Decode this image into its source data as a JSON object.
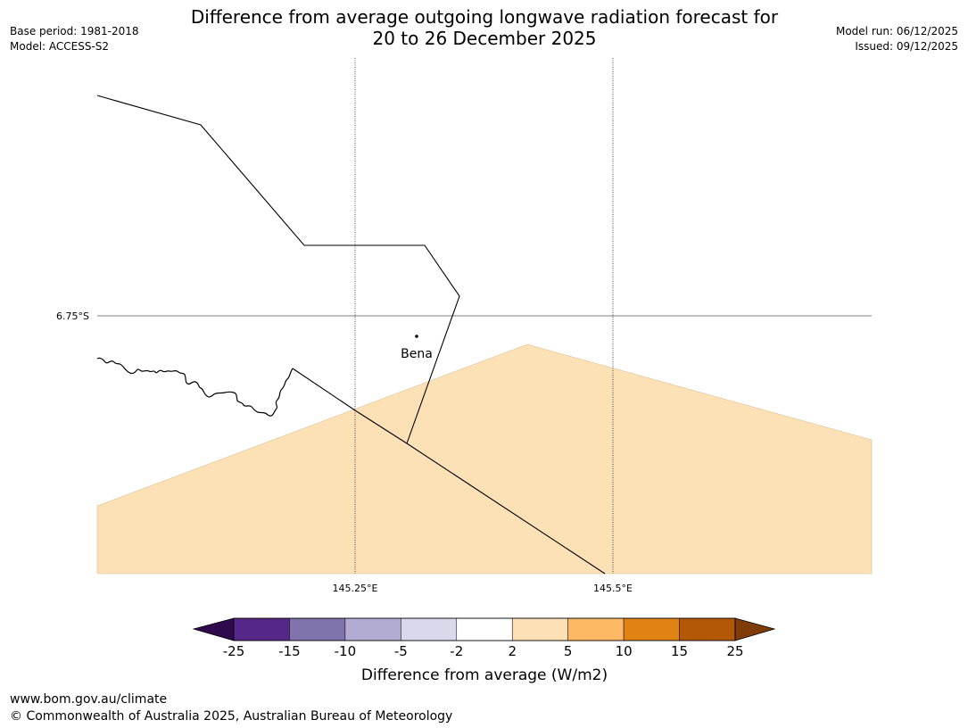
{
  "title": {
    "line1": "Difference from average outgoing longwave radiation forecast for",
    "line2": "20 to 26 December 2025"
  },
  "meta": {
    "base_period": "Base period: 1981-2018",
    "model": "Model: ACCESS-S2",
    "model_run": "Model run: 06/12/2025",
    "issued": "Issued: 09/12/2025"
  },
  "map": {
    "lat_label": "6.75°S",
    "lon_labels": [
      "145.25°E",
      "145.5°E"
    ],
    "place": "Bena",
    "fill_category": "2 to 5",
    "fill_color": "#fce0b6",
    "frame_color": "#000000"
  },
  "colorbar": {
    "title": "Difference from average (W/m2)",
    "ticks": [
      "-25",
      "-15",
      "-10",
      "-5",
      "-2",
      "2",
      "5",
      "10",
      "15",
      "25"
    ],
    "under_color": "#2f0a4c",
    "over_color": "#7f3b08",
    "colors": [
      "#542788",
      "#8073ac",
      "#b2abd2",
      "#d8daeb",
      "#ffffff",
      "#fee0b6",
      "#fdb863",
      "#e08214",
      "#b35806"
    ]
  },
  "footer": {
    "url": "www.bom.gov.au/climate",
    "copyright": "© Commonwealth of Australia 2025, Australian Bureau of Meteorology"
  }
}
